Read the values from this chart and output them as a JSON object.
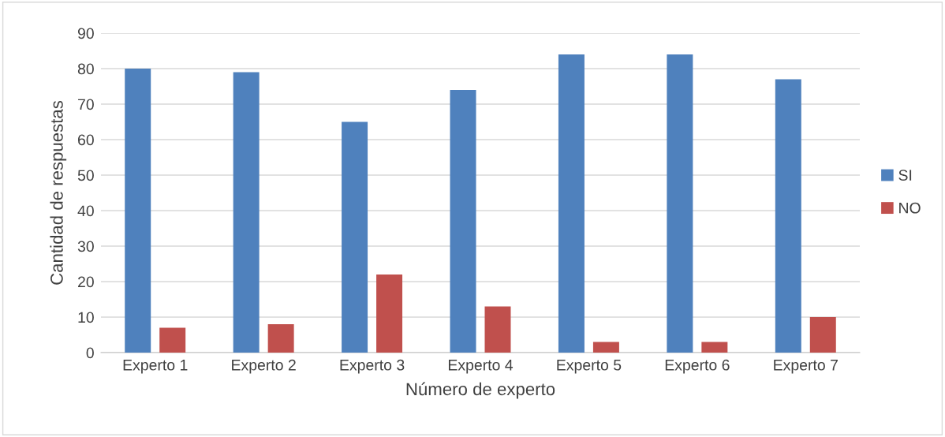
{
  "chart_data": {
    "type": "bar",
    "xlabel": "Número de experto",
    "ylabel": "Cantidad de respuestas",
    "categories": [
      "Experto 1",
      "Experto 2",
      "Experto 3",
      "Experto 4",
      "Experto 5",
      "Experto 6",
      "Experto 7"
    ],
    "series": [
      {
        "name": "SI",
        "color": "#4f81bd",
        "values": [
          80,
          79,
          65,
          74,
          84,
          84,
          77
        ]
      },
      {
        "name": "NO",
        "color": "#c0504d",
        "values": [
          7,
          8,
          22,
          13,
          3,
          3,
          10
        ]
      }
    ],
    "ylim": [
      0,
      90
    ],
    "yticks": [
      0,
      10,
      20,
      30,
      40,
      50,
      60,
      70,
      80,
      90
    ],
    "grid": "y",
    "legend": "right"
  }
}
